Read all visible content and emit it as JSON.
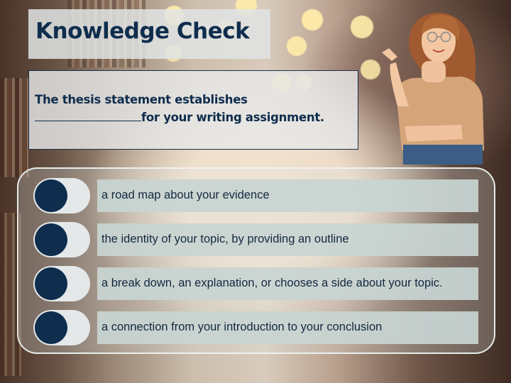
{
  "slide": {
    "title": "Knowledge Check",
    "question": {
      "before_blank": "The thesis statement establishes",
      "after_blank": "for your writing assignment."
    },
    "options": [
      {
        "label": "a road map about your evidence"
      },
      {
        "label": "the identity of your topic, by providing an outline"
      },
      {
        "label": "a break down, an explanation, or chooses a side about your topic."
      },
      {
        "label": "a connection from your introduction to your conclusion"
      }
    ]
  },
  "colors": {
    "heading_navy": "#0f2d4d",
    "toggle_knob": "#0f2d4d",
    "answer_bar": "#c8d4d2",
    "panel_border": "#eef2f2"
  },
  "icons": {
    "option_selector": "toggle-switch-icon",
    "illustration": "woman-pointing-photo"
  }
}
